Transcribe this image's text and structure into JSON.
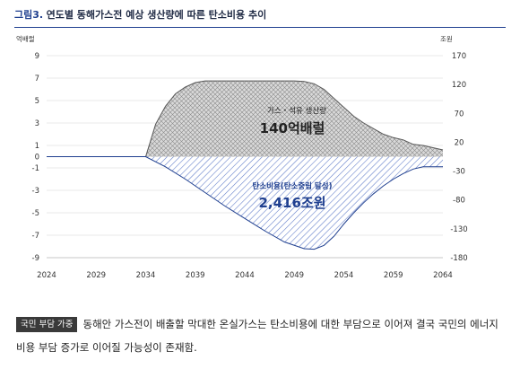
{
  "header": {
    "figure_no": "그림3.",
    "title": "연도별 동해가스전 예상 생산량에 따른 탄소비용 추이"
  },
  "chart_data": {
    "type": "area",
    "left_unit": "억배럴",
    "right_unit": "조원",
    "x_ticks": [
      "2024",
      "2029",
      "2034",
      "2039",
      "2044",
      "2049",
      "2054",
      "2059",
      "2064"
    ],
    "xlim": [
      2024,
      2064
    ],
    "left_ticks": [
      "9",
      "7",
      "5",
      "3",
      "1",
      "0",
      "-1",
      "-3",
      "-5",
      "-7",
      "-9"
    ],
    "left_ylim": [
      -9,
      9
    ],
    "right_ticks": [
      "170",
      "120",
      "70",
      "20",
      "-30",
      "-80",
      "-130",
      "-180"
    ],
    "right_ylim": [
      -180,
      170
    ],
    "grid": true,
    "series": [
      {
        "name": "가스・석유 생산량",
        "color": "#555555",
        "fill": "crosshatch-gray",
        "x": [
          2024,
          2034,
          2035,
          2036,
          2037,
          2038,
          2039,
          2040,
          2041,
          2042,
          2043,
          2044,
          2045,
          2046,
          2047,
          2048,
          2049,
          2050,
          2051,
          2052,
          2053,
          2054,
          2055,
          2056,
          2057,
          2058,
          2059,
          2060,
          2061,
          2062,
          2063,
          2064
        ],
        "values": [
          0,
          0,
          2.9,
          4.5,
          5.6,
          6.2,
          6.6,
          6.75,
          6.75,
          6.75,
          6.75,
          6.75,
          6.75,
          6.75,
          6.75,
          6.75,
          6.75,
          6.7,
          6.5,
          6.0,
          5.2,
          4.4,
          3.6,
          3.0,
          2.5,
          2.0,
          1.7,
          1.5,
          1.1,
          1.0,
          0.8,
          0.6
        ]
      },
      {
        "name": "탄소비용(탄소중립 달성)",
        "color": "#1f3f8f",
        "fill": "diagonal-blue",
        "x": [
          2024,
          2034,
          2036,
          2038,
          2040,
          2042,
          2044,
          2046,
          2048,
          2050,
          2051,
          2052,
          2053,
          2054,
          2055,
          2056,
          2057,
          2058,
          2059,
          2060,
          2061,
          2062,
          2063,
          2064
        ],
        "values": [
          0,
          0,
          -0.9,
          -2.0,
          -3.2,
          -4.4,
          -5.5,
          -6.6,
          -7.6,
          -8.2,
          -8.25,
          -7.9,
          -7.1,
          -6.0,
          -5.0,
          -4.1,
          -3.3,
          -2.6,
          -2.0,
          -1.5,
          -1.1,
          -0.9,
          -0.9,
          -0.9
        ]
      }
    ],
    "annotations": [
      {
        "label": "가스・석유 생산량",
        "value": "140억배럴"
      },
      {
        "label": "탄소비용(탄소중립 달성)",
        "value": "2,416조원"
      }
    ]
  },
  "note": {
    "badge": "국민 부담 가중",
    "text": "동해안 가스전이 배출할 막대한 온실가스는 탄소비용에 대한 부담으로 이어져 결국 국민의 에너지 비용 부담 증가로 이어질 가능성이 존재함."
  }
}
